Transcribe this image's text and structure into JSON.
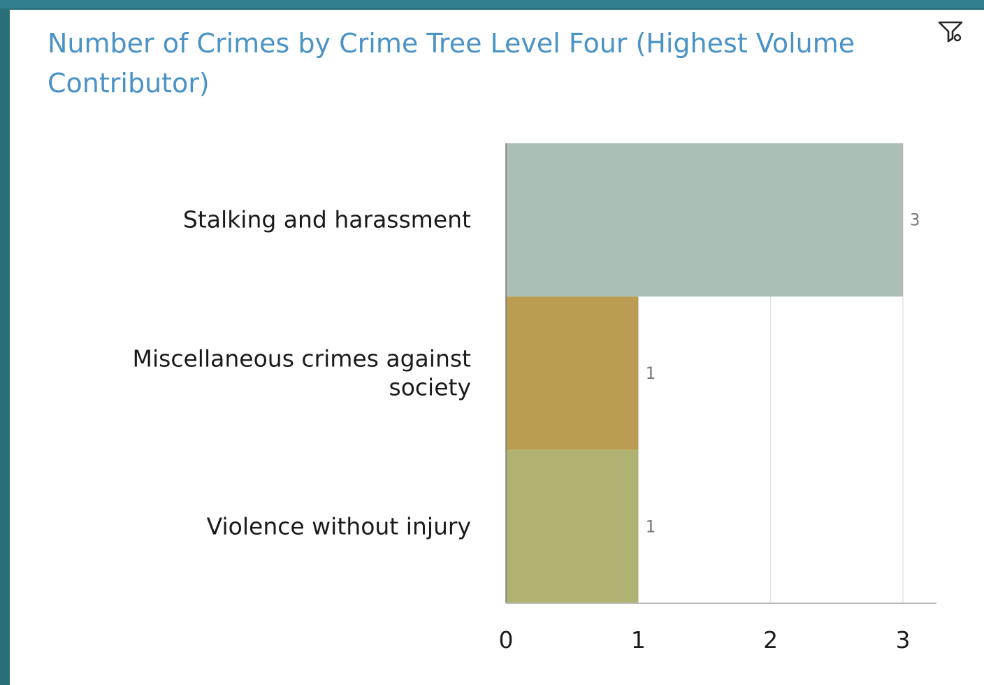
{
  "widget": {
    "title": "Number of Crimes by Crime Tree Level Four (Highest Volume Contributor)",
    "filter_icon": "filter-icon"
  },
  "chart_data": {
    "type": "bar",
    "orientation": "horizontal",
    "title": "Number of Crimes by Crime Tree Level Four (Highest Volume Contributor)",
    "categories": [
      "Stalking and harassment",
      "Miscellaneous crimes against society",
      "Violence without injury"
    ],
    "category_lines": [
      [
        "Stalking and harassment"
      ],
      [
        "Miscellaneous crimes against",
        "society"
      ],
      [
        "Violence without injury"
      ]
    ],
    "values": [
      3,
      1,
      1
    ],
    "data_labels": [
      "3",
      "1",
      "1"
    ],
    "colors": [
      "#abbfb4",
      "#ba9c52",
      "#b0b272"
    ],
    "xlim": [
      0,
      3
    ],
    "xticks": [
      0,
      1,
      2,
      3
    ],
    "xtick_labels": [
      "0",
      "1",
      "2",
      "3"
    ],
    "grid": true,
    "legend": "none"
  }
}
